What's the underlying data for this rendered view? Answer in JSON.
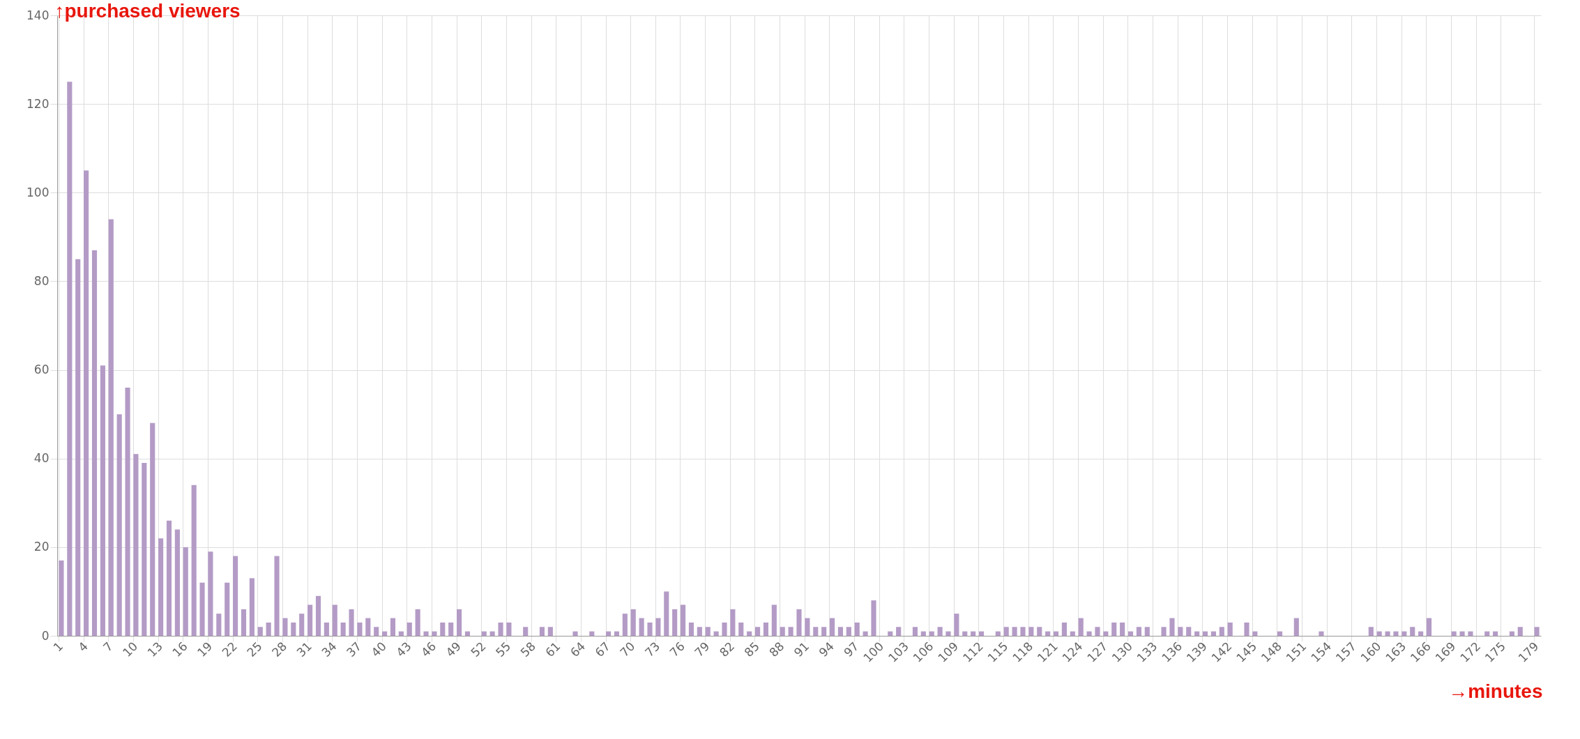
{
  "chart_data": {
    "type": "bar",
    "xlabel": "→minutes",
    "ylabel": "↑purchased viewers",
    "categories": [
      "1",
      null,
      null,
      "4",
      null,
      null,
      "7",
      null,
      null,
      "10",
      null,
      null,
      "13",
      null,
      null,
      "16",
      null,
      null,
      "19",
      null,
      null,
      "22",
      null,
      null,
      "25",
      null,
      null,
      "28",
      null,
      null,
      "31",
      null,
      null,
      "34",
      null,
      null,
      "37",
      null,
      null,
      "40",
      null,
      null,
      "43",
      null,
      null,
      "46",
      null,
      null,
      "49",
      null,
      null,
      "52",
      null,
      null,
      "55",
      null,
      null,
      "58",
      null,
      null,
      "61",
      null,
      null,
      "64",
      null,
      null,
      "67",
      null,
      null,
      "70",
      null,
      null,
      "73",
      null,
      null,
      "76",
      null,
      null,
      "79",
      null,
      null,
      "82",
      null,
      null,
      "85",
      null,
      null,
      "88",
      null,
      null,
      "91",
      null,
      null,
      "94",
      null,
      null,
      "97",
      null,
      null,
      "100",
      null,
      null,
      "103",
      null,
      null,
      "106",
      null,
      null,
      "109",
      null,
      null,
      "112",
      null,
      null,
      "115",
      null,
      null,
      "118",
      null,
      null,
      "121",
      null,
      null,
      "124",
      null,
      null,
      "127",
      null,
      null,
      "130",
      null,
      null,
      "133",
      null,
      null,
      "136",
      null,
      null,
      "139",
      null,
      null,
      "142",
      null,
      null,
      "145",
      null,
      null,
      "148",
      null,
      null,
      "151",
      null,
      null,
      "154",
      null,
      null,
      "157",
      null,
      null,
      "160",
      null,
      null,
      "163",
      null,
      null,
      "166",
      null,
      null,
      "169",
      null,
      null,
      "172",
      null,
      null,
      "175",
      null,
      null,
      null,
      "179"
    ],
    "values": [
      17,
      125,
      85,
      105,
      87,
      61,
      94,
      50,
      56,
      41,
      39,
      48,
      22,
      26,
      24,
      20,
      34,
      12,
      19,
      5,
      12,
      18,
      6,
      13,
      2,
      3,
      18,
      4,
      3,
      5,
      7,
      9,
      3,
      7,
      3,
      6,
      3,
      4,
      2,
      1,
      4,
      1,
      3,
      6,
      1,
      1,
      3,
      3,
      6,
      1,
      0,
      1,
      1,
      3,
      3,
      0,
      2,
      0,
      2,
      2,
      0,
      0,
      1,
      0,
      1,
      0,
      1,
      1,
      5,
      6,
      4,
      3,
      4,
      10,
      6,
      7,
      3,
      2,
      2,
      1,
      3,
      6,
      3,
      1,
      2,
      3,
      7,
      2,
      2,
      6,
      4,
      2,
      2,
      4,
      2,
      2,
      3,
      1,
      8,
      0,
      1,
      2,
      0,
      2,
      1,
      1,
      2,
      1,
      5,
      1,
      1,
      1,
      0,
      1,
      2,
      2,
      2,
      2,
      2,
      1,
      1,
      3,
      1,
      4,
      1,
      2,
      1,
      3,
      3,
      1,
      2,
      2,
      0,
      2,
      4,
      2,
      2,
      1,
      1,
      1,
      2,
      3,
      0,
      3,
      1,
      0,
      0,
      1,
      0,
      4,
      0,
      0,
      1,
      0,
      0,
      0,
      0,
      0,
      2,
      1,
      1,
      1,
      1,
      2,
      1,
      4,
      0,
      0,
      1,
      1,
      1,
      0,
      1,
      1,
      0,
      1,
      2,
      0,
      2
    ],
    "color": "#b49bc6",
    "ylim": [
      0,
      140
    ],
    "yticks": [
      0,
      20,
      40,
      60,
      80,
      100,
      120,
      140
    ],
    "grid": true
  }
}
